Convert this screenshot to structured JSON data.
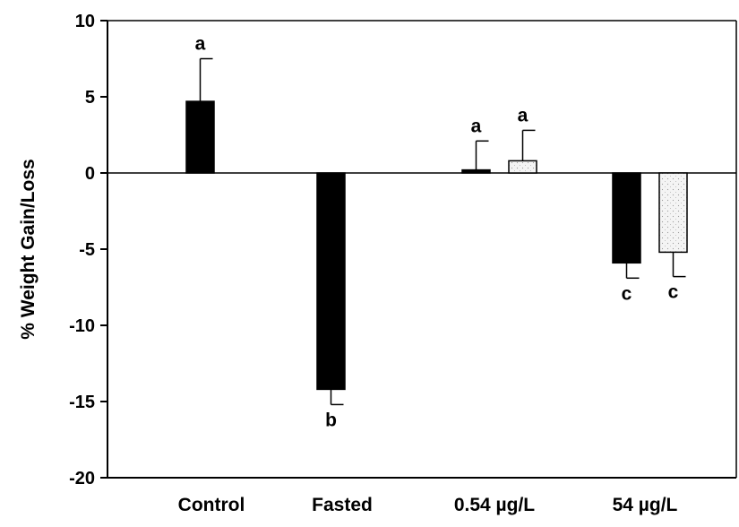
{
  "chart_data": {
    "type": "bar",
    "title": "",
    "xlabel": "",
    "ylabel": "% Weight Gain/Loss",
    "ylim": [
      -20,
      10
    ],
    "yticks": [
      10,
      5,
      0,
      -5,
      -10,
      -15,
      -20
    ],
    "grid": false,
    "legend": "none",
    "categories": [
      "Control",
      "Fasted",
      "0.54 µg/L",
      "54 µg/L"
    ],
    "bars": [
      {
        "category": "Control",
        "slot": "single",
        "value": 4.7,
        "error": 2.8,
        "fill": "solid",
        "label": "a"
      },
      {
        "category": "Fasted",
        "slot": "single",
        "value": -14.2,
        "error": 1.0,
        "fill": "solid",
        "label": "b"
      },
      {
        "category": "0.54 µg/L",
        "slot": "left",
        "value": 0.2,
        "error": 1.9,
        "fill": "solid",
        "label": "a"
      },
      {
        "category": "0.54 µg/L",
        "slot": "right",
        "value": 0.8,
        "error": 2.0,
        "fill": "light",
        "label": "a"
      },
      {
        "category": "54 µg/L",
        "slot": "left",
        "value": -5.9,
        "error": 1.0,
        "fill": "solid",
        "label": "c"
      },
      {
        "category": "54 µg/L",
        "slot": "right",
        "value": -5.2,
        "error": 1.6,
        "fill": "light",
        "label": "c"
      }
    ]
  },
  "colors": {
    "solid": "#000000",
    "light": "#f4f4f4",
    "axis": "#000000"
  }
}
